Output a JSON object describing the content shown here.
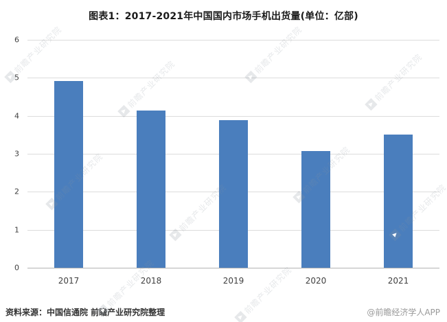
{
  "title": "图表1：2017-2021年中国国内市场手机出货量(单位：亿部)",
  "chart_data": {
    "type": "bar",
    "title": "图表1：2017-2021年中国国内市场手机出货量(单位：亿部)",
    "categories": [
      "2017",
      "2018",
      "2019",
      "2020",
      "2021"
    ],
    "values": [
      4.91,
      4.14,
      3.89,
      3.08,
      3.51
    ],
    "xlabel": "",
    "ylabel": "",
    "ylim": [
      0,
      6
    ],
    "yticks": [
      0,
      1,
      2,
      3,
      4,
      5,
      6
    ],
    "grid": true,
    "legend": "none",
    "bar_color": "#4a7ebd"
  },
  "footer": {
    "source": "资料来源：中国信通院 前瞻产业研究院整理",
    "credit": "@前瞻经济学人APP"
  },
  "watermark": {
    "text": "前瞻产业研究院"
  }
}
